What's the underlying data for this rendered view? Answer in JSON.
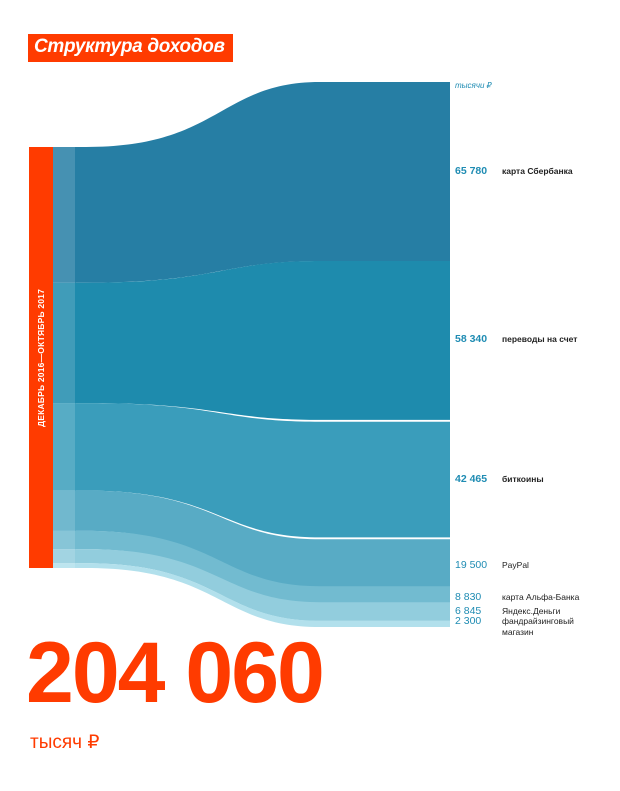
{
  "title": "Структура доходов",
  "period": "ДЕКАБРЬ 2016—ОКТЯБРЬ 2017",
  "unit_label": "тысячи ₽",
  "total": {
    "value": "204 060",
    "unit": "тысяч ₽"
  },
  "colors": {
    "accent": "#ff3b00",
    "value_text": "#1f8cb3"
  },
  "chart_data": {
    "type": "sankey",
    "title": "Структура доходов",
    "total": 204060,
    "flows": [
      {
        "name": "карта Сбербанка",
        "value": 65780,
        "label": "65 780",
        "color": "#267ea4"
      },
      {
        "name": "переводы на счет",
        "value": 58340,
        "label": "58 340",
        "color": "#1e8bad"
      },
      {
        "name": "биткоины",
        "value": 42465,
        "label": "42 465",
        "color": "#3a9dbb"
      },
      {
        "name": "PayPal",
        "value": 19500,
        "label": "19 500",
        "color": "#58abc5"
      },
      {
        "name": "карта Альфа-Банка",
        "value": 8830,
        "label": "8 830",
        "color": "#72bbd0"
      },
      {
        "name": "Яндекс.Деньги",
        "value": 6845,
        "label": "6 845",
        "color": "#92cddd"
      },
      {
        "name": "фандрайзинговый магазин",
        "value": 2300,
        "label": "2 300",
        "color": "#b2e0ec"
      }
    ]
  }
}
